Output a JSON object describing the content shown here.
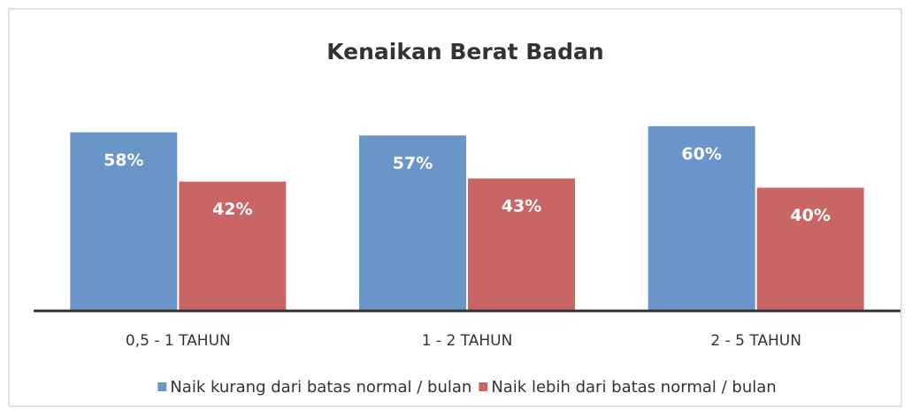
{
  "chart_data": {
    "type": "bar",
    "title": "Kenaikan Berat Badan",
    "categories": [
      "0,5 - 1 TAHUN",
      "1 - 2 TAHUN",
      "2 - 5 TAHUN"
    ],
    "series": [
      {
        "name": "Naik kurang dari batas normal / bulan",
        "color": "#6a95c9",
        "values": [
          58,
          57,
          60
        ],
        "value_labels": [
          "58%",
          "57%",
          "60%"
        ]
      },
      {
        "name": "Naik lebih dari batas normal / bulan",
        "color": "#c96665",
        "values": [
          42,
          43,
          40
        ],
        "value_labels": [
          "42%",
          "43%",
          "40%"
        ]
      }
    ],
    "ylim": [
      0,
      70
    ],
    "legend": "bottom"
  }
}
